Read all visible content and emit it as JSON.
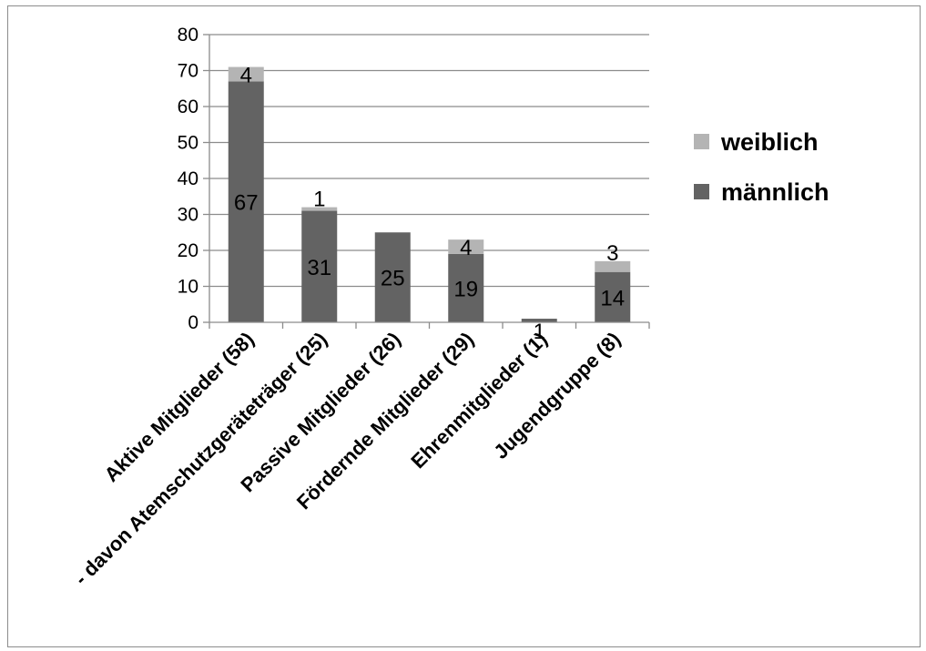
{
  "chart_data": {
    "type": "bar",
    "stacked": true,
    "categories": [
      "Aktive Mitglieder (58)",
      "- davon Atemschutzgeräteträger (25)",
      "Passive Mitglieder (26)",
      "Fördernde Mitglieder (29)",
      "Ehrenmitglieder (1)",
      "Jugendgruppe (8)"
    ],
    "series": [
      {
        "name": "männlich",
        "values": [
          67,
          31,
          25,
          19,
          1,
          14
        ],
        "color": "#636363",
        "labels": [
          "67",
          "31",
          "25",
          "19",
          "1",
          "14"
        ]
      },
      {
        "name": "weiblich",
        "values": [
          4,
          1,
          0,
          4,
          0,
          3
        ],
        "color": "#b4b4b4",
        "labels": [
          "4",
          "1",
          "",
          "4",
          "",
          "3"
        ]
      }
    ],
    "ylim": [
      0,
      80
    ],
    "yticks": [
      0,
      10,
      20,
      30,
      40,
      50,
      60,
      70,
      80
    ],
    "grid": true,
    "legend_position": "right",
    "legend_order": [
      "weiblich",
      "männlich"
    ]
  }
}
